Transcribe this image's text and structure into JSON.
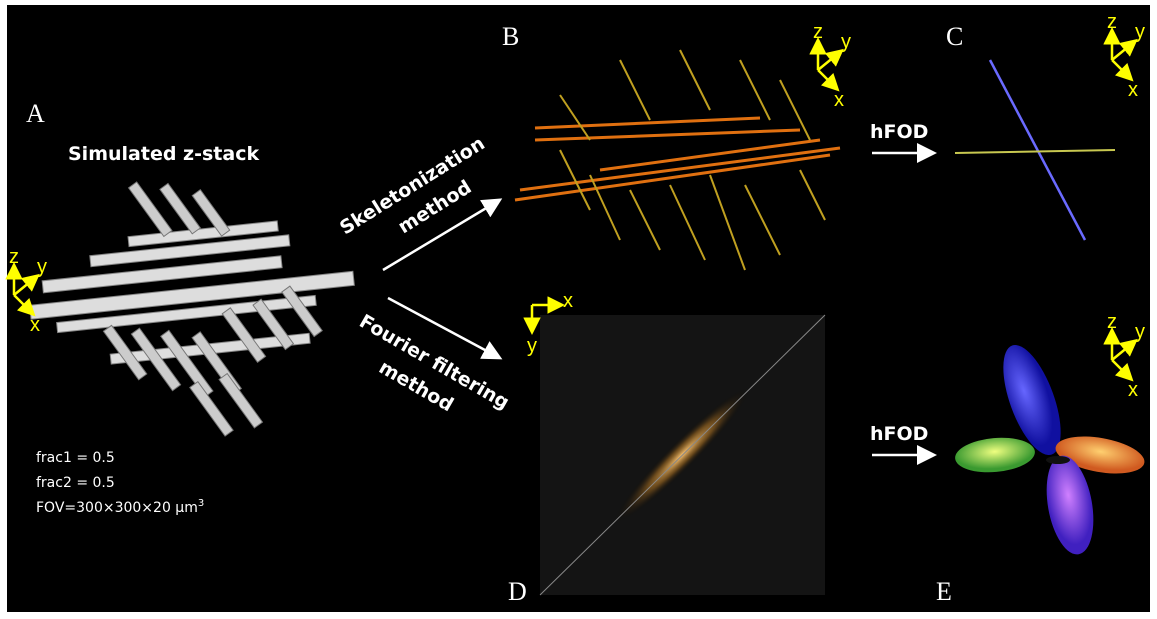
{
  "panels": [
    "A",
    "B",
    "C",
    "D",
    "E"
  ],
  "simulation": {
    "title": "Simulated z-stack",
    "params": [
      "frac1 = 0.5",
      "frac2 = 0.5"
    ],
    "fov": {
      "text": "FOV=300×300×20 µm",
      "superscript": "3"
    }
  },
  "methods": [
    {
      "lines": [
        "Skeletonization",
        "method"
      ]
    },
    {
      "lines": [
        "Fourier filtering",
        "method"
      ]
    }
  ],
  "hfod": [
    "hFOD",
    "hFOD"
  ],
  "axes": {
    "A": [
      "z",
      "y",
      "x"
    ],
    "B": [
      "z",
      "y",
      "x"
    ],
    "C": [
      "z",
      "y",
      "x"
    ],
    "E": [
      "z",
      "y",
      "x"
    ],
    "D": [
      "x",
      "y"
    ]
  }
}
